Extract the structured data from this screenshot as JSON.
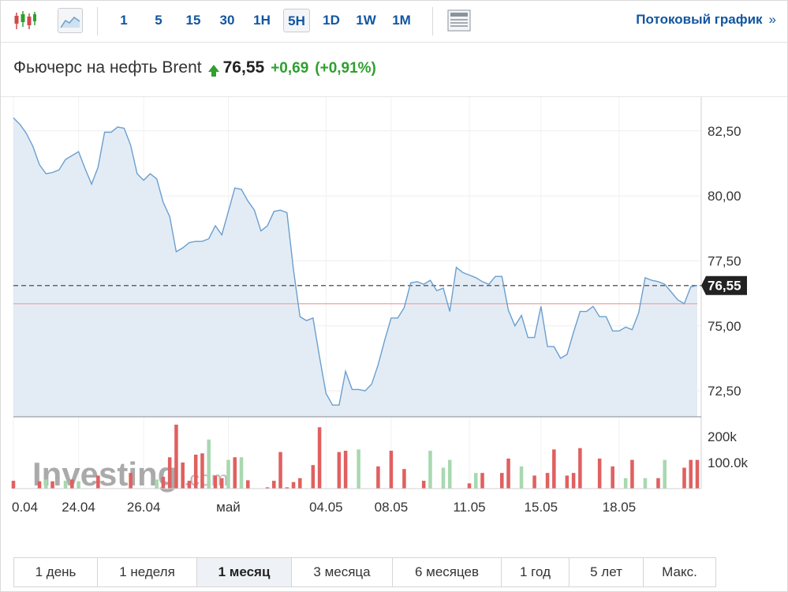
{
  "toolbar": {
    "timeframes": [
      {
        "label": "1",
        "active": false
      },
      {
        "label": "5",
        "active": false
      },
      {
        "label": "15",
        "active": false
      },
      {
        "label": "30",
        "active": false
      },
      {
        "label": "1H",
        "active": false
      },
      {
        "label": "5H",
        "active": true
      },
      {
        "label": "1D",
        "active": false
      },
      {
        "label": "1W",
        "active": false
      },
      {
        "label": "1M",
        "active": false
      }
    ],
    "icons": {
      "candles": "candlestick-chart-icon",
      "line": "line-chart-icon",
      "news": "news-panel-icon"
    },
    "stream_link": "Потоковый график",
    "stream_arrow": "»"
  },
  "header": {
    "title": "Фьючерс на нефть Brent",
    "price": "76,55",
    "change": "+0,69",
    "change_pct": "(+0,91%)",
    "direction": "up"
  },
  "colors": {
    "accent": "#1256a0",
    "up": "#2ea02e",
    "line": "#6a9fcf",
    "area": "#e3ecf5",
    "vol_up": "#a8d8b0",
    "vol_down": "#e06060",
    "ref_line": "#f0b0b0"
  },
  "chart_data": {
    "type": "line",
    "x_tick_labels": [
      "0.04",
      "24.04",
      "26.04",
      "май",
      "04.05",
      "08.05",
      "11.05",
      "15.05",
      "18.05"
    ],
    "y_ticks": [
      "82,50",
      "80,00",
      "77,50",
      "75,00",
      "72,50"
    ],
    "ylim": [
      71.5,
      83.8
    ],
    "current_price_label": "76,55",
    "current_price": 76.55,
    "reference_level": 75.85,
    "volume_ticks": [
      "200k",
      "100.0k"
    ],
    "watermark": {
      "brand": "Investing",
      "suffix": ".com"
    },
    "series": [
      {
        "values": [
          83.0,
          82.75,
          82.4,
          81.9,
          81.2,
          80.85,
          80.9,
          81.0,
          81.4,
          81.55,
          81.7,
          81.05,
          80.45,
          81.1,
          82.45,
          82.45,
          82.65,
          82.6,
          81.95,
          80.85,
          80.6,
          80.85,
          80.65,
          79.75,
          79.2,
          77.85,
          78.0,
          78.2,
          78.25,
          78.25,
          78.35,
          78.85,
          78.5,
          79.4,
          80.3,
          80.25,
          79.8,
          79.45,
          78.65,
          78.85,
          79.4,
          79.45,
          79.35,
          77.15,
          75.35,
          75.2,
          75.3,
          73.8,
          72.4,
          71.95,
          71.95,
          73.25,
          72.55,
          72.55,
          72.5,
          72.75,
          73.5,
          74.45,
          75.3,
          75.3,
          75.7,
          76.65,
          76.7,
          76.6,
          76.75,
          76.35,
          76.45,
          75.55,
          77.25,
          77.05,
          76.95,
          76.85,
          76.7,
          76.6,
          76.9,
          76.9,
          75.6,
          75.0,
          75.4,
          74.55,
          74.55,
          75.75,
          74.2,
          74.2,
          73.75,
          73.9,
          74.75,
          75.55,
          75.55,
          75.75,
          75.35,
          75.35,
          74.8,
          74.8,
          74.95,
          74.85,
          75.5,
          76.85,
          76.75,
          76.7,
          76.6,
          76.3,
          76.0,
          75.85,
          76.5,
          76.55
        ]
      }
    ],
    "volume": [
      {
        "value": 30000,
        "up": false
      },
      {
        "value": 0,
        "up": false
      },
      {
        "value": 0,
        "up": false
      },
      {
        "value": 0,
        "up": false
      },
      {
        "value": 28000,
        "up": false
      },
      {
        "value": 35000,
        "up": true
      },
      {
        "value": 28000,
        "up": false
      },
      {
        "value": 0,
        "up": false
      },
      {
        "value": 30000,
        "up": true
      },
      {
        "value": 35000,
        "up": false
      },
      {
        "value": 28000,
        "up": true
      },
      {
        "value": 0,
        "up": false
      },
      {
        "value": 0,
        "up": false
      },
      {
        "value": 50000,
        "up": false
      },
      {
        "value": 0,
        "up": false
      },
      {
        "value": 0,
        "up": false
      },
      {
        "value": 0,
        "up": false
      },
      {
        "value": 0,
        "up": false
      },
      {
        "value": 60000,
        "up": false
      },
      {
        "value": 0,
        "up": false
      },
      {
        "value": 0,
        "up": false
      },
      {
        "value": 0,
        "up": false
      },
      {
        "value": 35000,
        "up": true
      },
      {
        "value": 45000,
        "up": false
      },
      {
        "value": 120000,
        "up": false
      },
      {
        "value": 245000,
        "up": false
      },
      {
        "value": 100000,
        "up": false
      },
      {
        "value": 30000,
        "up": false
      },
      {
        "value": 130000,
        "up": false
      },
      {
        "value": 135000,
        "up": false
      },
      {
        "value": 188000,
        "up": true
      },
      {
        "value": 50000,
        "up": false
      },
      {
        "value": 40000,
        "up": false
      },
      {
        "value": 110000,
        "up": true
      },
      {
        "value": 120000,
        "up": false
      },
      {
        "value": 120000,
        "up": true
      },
      {
        "value": 32000,
        "up": false
      },
      {
        "value": 0,
        "up": false
      },
      {
        "value": 0,
        "up": false
      },
      {
        "value": 5000,
        "up": false
      },
      {
        "value": 30000,
        "up": false
      },
      {
        "value": 140000,
        "up": false
      },
      {
        "value": 5000,
        "up": false
      },
      {
        "value": 25000,
        "up": false
      },
      {
        "value": 40000,
        "up": false
      },
      {
        "value": 0,
        "up": false
      },
      {
        "value": 90000,
        "up": false
      },
      {
        "value": 235000,
        "up": false
      },
      {
        "value": 0,
        "up": false
      },
      {
        "value": 0,
        "up": false
      },
      {
        "value": 140000,
        "up": false
      },
      {
        "value": 145000,
        "up": false
      },
      {
        "value": 0,
        "up": false
      },
      {
        "value": 150000,
        "up": true
      },
      {
        "value": 0,
        "up": false
      },
      {
        "value": 0,
        "up": false
      },
      {
        "value": 85000,
        "up": false
      },
      {
        "value": 0,
        "up": false
      },
      {
        "value": 145000,
        "up": false
      },
      {
        "value": 0,
        "up": false
      },
      {
        "value": 75000,
        "up": false
      },
      {
        "value": 0,
        "up": false
      },
      {
        "value": 0,
        "up": false
      },
      {
        "value": 30000,
        "up": false
      },
      {
        "value": 145000,
        "up": true
      },
      {
        "value": 0,
        "up": false
      },
      {
        "value": 80000,
        "up": true
      },
      {
        "value": 110000,
        "up": true
      },
      {
        "value": 0,
        "up": false
      },
      {
        "value": 0,
        "up": false
      },
      {
        "value": 20000,
        "up": false
      },
      {
        "value": 60000,
        "up": true
      },
      {
        "value": 60000,
        "up": false
      },
      {
        "value": 0,
        "up": false
      },
      {
        "value": 0,
        "up": false
      },
      {
        "value": 60000,
        "up": false
      },
      {
        "value": 115000,
        "up": false
      },
      {
        "value": 0,
        "up": false
      },
      {
        "value": 85000,
        "up": true
      },
      {
        "value": 0,
        "up": false
      },
      {
        "value": 50000,
        "up": false
      },
      {
        "value": 0,
        "up": false
      },
      {
        "value": 60000,
        "up": false
      },
      {
        "value": 150000,
        "up": false
      },
      {
        "value": 0,
        "up": false
      },
      {
        "value": 50000,
        "up": false
      },
      {
        "value": 60000,
        "up": false
      },
      {
        "value": 155000,
        "up": false
      },
      {
        "value": 0,
        "up": false
      },
      {
        "value": 0,
        "up": false
      },
      {
        "value": 115000,
        "up": false
      },
      {
        "value": 0,
        "up": false
      },
      {
        "value": 85000,
        "up": false
      },
      {
        "value": 0,
        "up": false
      },
      {
        "value": 40000,
        "up": true
      },
      {
        "value": 110000,
        "up": false
      },
      {
        "value": 0,
        "up": false
      },
      {
        "value": 40000,
        "up": true
      },
      {
        "value": 0,
        "up": false
      },
      {
        "value": 40000,
        "up": false
      },
      {
        "value": 110000,
        "up": true
      },
      {
        "value": 0,
        "up": false
      },
      {
        "value": 0,
        "up": false
      },
      {
        "value": 80000,
        "up": false
      },
      {
        "value": 110000,
        "up": false
      },
      {
        "value": 110000,
        "up": false
      }
    ]
  },
  "periods": [
    {
      "label": "1 день",
      "active": false
    },
    {
      "label": "1 неделя",
      "active": false
    },
    {
      "label": "1 месяц",
      "active": true
    },
    {
      "label": "3 месяца",
      "active": false
    },
    {
      "label": "6 месяцев",
      "active": false
    },
    {
      "label": "1 год",
      "active": false
    },
    {
      "label": "5 лет",
      "active": false
    },
    {
      "label": "Макс.",
      "active": false
    }
  ]
}
